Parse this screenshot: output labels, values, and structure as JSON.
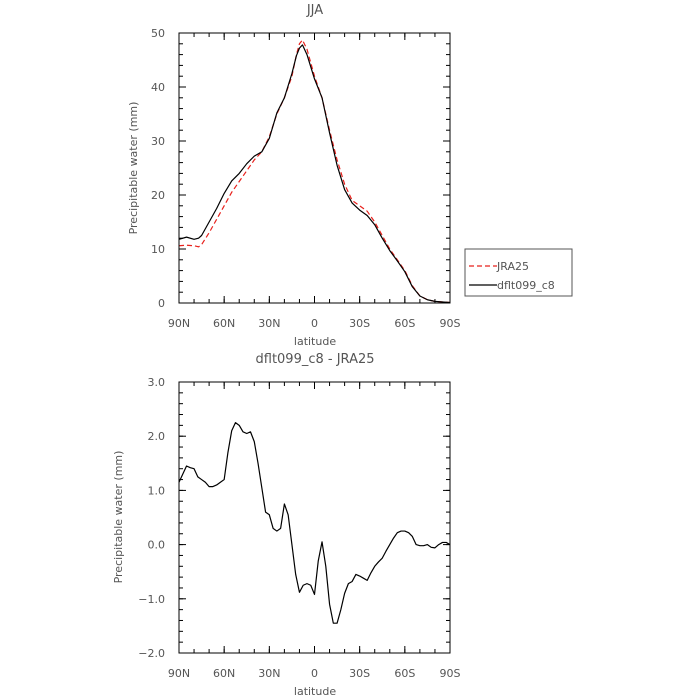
{
  "chart_data": [
    {
      "type": "line",
      "title": "JJA",
      "xlabel": "latitude",
      "ylabel": "Precipitable water (mm)",
      "xlim": [
        -90,
        90
      ],
      "ylim": [
        0,
        50
      ],
      "x_ticks": [
        -90,
        -60,
        -30,
        0,
        30,
        60,
        90
      ],
      "x_tick_labels": [
        "90N",
        "60N",
        "30N",
        "0",
        "30S",
        "60S",
        "90S"
      ],
      "y_ticks": [
        0,
        10,
        20,
        30,
        40,
        50
      ],
      "y_tick_labels": [
        "0",
        "10",
        "20",
        "30",
        "40",
        "50"
      ],
      "legend_position": "right",
      "series": [
        {
          "name": "JRA25",
          "color": "#e8211c",
          "dash": "dashed",
          "x": [
            -90,
            -85,
            -80,
            -77,
            -75,
            -70,
            -65,
            -60,
            -55,
            -50,
            -45,
            -40,
            -35,
            -30,
            -25,
            -20,
            -15,
            -12,
            -10,
            -8,
            -5,
            0,
            5,
            10,
            15,
            20,
            25,
            30,
            35,
            40,
            45,
            50,
            55,
            60,
            65,
            70,
            75,
            80,
            85,
            90
          ],
          "y": [
            10.6,
            10.7,
            10.6,
            10.4,
            10.8,
            13.0,
            15.5,
            18.0,
            20.5,
            22.5,
            24.5,
            26.5,
            28.0,
            30.8,
            35.0,
            38.0,
            42.0,
            46.0,
            48.0,
            48.7,
            47.0,
            42.0,
            38.0,
            32.0,
            26.5,
            22.0,
            19.0,
            18.0,
            17.0,
            15.0,
            12.5,
            10.0,
            8.0,
            6.0,
            3.2,
            1.3,
            0.6,
            0.3,
            0.2,
            0.1
          ]
        },
        {
          "name": "dflt099_c8",
          "color": "#000000",
          "dash": "solid",
          "x": [
            -90,
            -85,
            -80,
            -77,
            -75,
            -70,
            -65,
            -60,
            -55,
            -50,
            -45,
            -40,
            -35,
            -30,
            -25,
            -20,
            -15,
            -12,
            -10,
            -8,
            -5,
            0,
            5,
            10,
            15,
            20,
            25,
            30,
            35,
            40,
            45,
            50,
            55,
            60,
            65,
            70,
            75,
            80,
            85,
            90
          ],
          "y": [
            11.8,
            12.2,
            11.8,
            12.0,
            12.5,
            15.0,
            17.5,
            20.3,
            22.6,
            24.0,
            25.8,
            27.2,
            28.0,
            30.5,
            35.2,
            38.0,
            42.5,
            45.8,
            47.2,
            47.8,
            46.0,
            41.5,
            38.0,
            31.5,
            25.5,
            21.0,
            18.5,
            17.2,
            16.2,
            14.5,
            12.0,
            9.7,
            7.8,
            5.8,
            3.0,
            1.3,
            0.6,
            0.3,
            0.2,
            0.1
          ]
        }
      ]
    },
    {
      "type": "line",
      "title": "dflt099_c8 - JRA25",
      "xlabel": "latitude",
      "ylabel": "Precipitable water (mm)",
      "xlim": [
        -90,
        90
      ],
      "ylim": [
        -2.0,
        3.0
      ],
      "x_ticks": [
        -90,
        -60,
        -30,
        0,
        30,
        60,
        90
      ],
      "x_tick_labels": [
        "90N",
        "60N",
        "30N",
        "0",
        "30S",
        "60S",
        "90S"
      ],
      "y_ticks": [
        -2.0,
        -1.0,
        0.0,
        1.0,
        2.0,
        3.0
      ],
      "y_tick_labels": [
        "−2.0",
        "−1.0",
        "0.0",
        "1.0",
        "2.0",
        "3.0"
      ],
      "series": [
        {
          "color": "#000000",
          "dash": "solid",
          "x": [
            -90,
            -87.5,
            -85,
            -82.5,
            -80,
            -77.5,
            -75,
            -72.5,
            -70,
            -67.5,
            -65,
            -62.5,
            -60,
            -57.5,
            -55,
            -52.5,
            -50,
            -47.5,
            -45,
            -42.5,
            -40,
            -37.5,
            -35,
            -32.5,
            -30,
            -27.5,
            -25,
            -22.5,
            -20,
            -17.5,
            -15,
            -12.5,
            -10,
            -7.5,
            -5,
            -2.5,
            0,
            2.5,
            5,
            7.5,
            10,
            12.5,
            15,
            17.5,
            20,
            22.5,
            25,
            27.5,
            30,
            32.5,
            35,
            37.5,
            40,
            42.5,
            45,
            47.5,
            50,
            52.5,
            55,
            57.5,
            60,
            62.5,
            65,
            67.5,
            70,
            72.5,
            75,
            77.5,
            80,
            82.5,
            85,
            87.5,
            90
          ],
          "y": [
            1.15,
            1.3,
            1.45,
            1.42,
            1.4,
            1.25,
            1.2,
            1.15,
            1.07,
            1.07,
            1.1,
            1.15,
            1.2,
            1.7,
            2.1,
            2.25,
            2.2,
            2.08,
            2.05,
            2.08,
            1.9,
            1.5,
            1.05,
            0.6,
            0.55,
            0.3,
            0.25,
            0.3,
            0.75,
            0.55,
            0.0,
            -0.55,
            -0.88,
            -0.75,
            -0.72,
            -0.75,
            -0.92,
            -0.3,
            0.05,
            -0.4,
            -1.1,
            -1.45,
            -1.45,
            -1.2,
            -0.9,
            -0.72,
            -0.68,
            -0.55,
            -0.58,
            -0.62,
            -0.66,
            -0.52,
            -0.4,
            -0.32,
            -0.25,
            -0.12,
            0.0,
            0.12,
            0.22,
            0.25,
            0.25,
            0.22,
            0.15,
            0.0,
            -0.02,
            -0.02,
            0.0,
            -0.05,
            -0.06,
            0.0,
            0.04,
            0.04,
            0.0
          ]
        }
      ]
    }
  ]
}
